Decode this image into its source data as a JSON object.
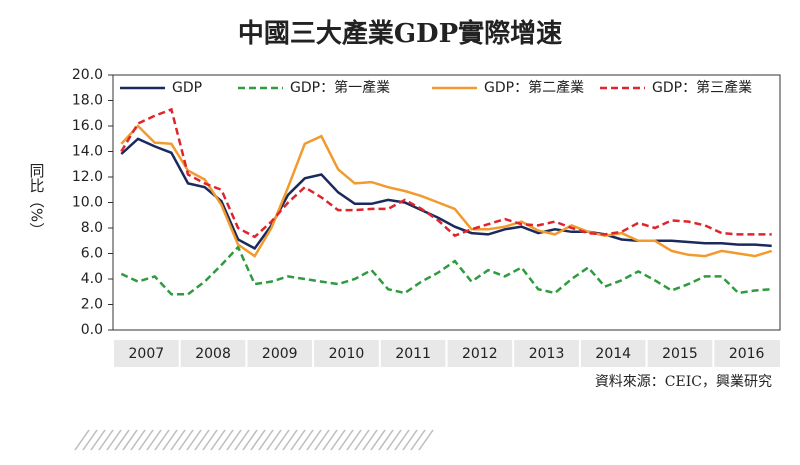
{
  "chart_data": {
    "type": "line",
    "title": "中國三大產業GDP實際增速",
    "y_label": "同比（%）",
    "source": "資料來源：CEIC，興業研究",
    "quarter_groups": [
      "2007",
      "2008",
      "2009",
      "2010",
      "2011",
      "2012",
      "2013",
      "2014",
      "2015",
      "2016"
    ],
    "ylim": [
      0,
      20
    ],
    "yticks": [
      {
        "value": 0,
        "label": "0.0"
      },
      {
        "value": 2,
        "label": "2.0"
      },
      {
        "value": 4,
        "label": "4.0"
      },
      {
        "value": 6,
        "label": "6.0"
      },
      {
        "value": 8,
        "label": "8.0"
      },
      {
        "value": 10,
        "label": "10.0"
      },
      {
        "value": 12,
        "label": "12.0"
      },
      {
        "value": 14,
        "label": "14.0"
      },
      {
        "value": 16,
        "label": "16.0"
      },
      {
        "value": 18,
        "label": "18.0"
      },
      {
        "value": 20,
        "label": "20.0"
      }
    ],
    "series": [
      {
        "name": "GDP",
        "color": "#1b2a5c",
        "dash": "solid",
        "values": [
          13.8,
          15.0,
          14.4,
          13.9,
          11.5,
          11.2,
          10.1,
          7.1,
          6.4,
          8.2,
          10.6,
          11.9,
          12.2,
          10.8,
          9.9,
          9.9,
          10.2,
          10.0,
          9.4,
          8.8,
          8.1,
          7.6,
          7.5,
          7.9,
          8.1,
          7.6,
          7.9,
          7.7,
          7.7,
          7.5,
          7.1,
          7.0,
          7.0,
          7.0,
          6.9,
          6.8,
          6.8,
          6.7,
          6.7,
          6.6
        ]
      },
      {
        "name": "GDP：第一產業",
        "color": "#2e9b3e",
        "dash": "dashed",
        "values": [
          4.4,
          3.8,
          4.2,
          2.8,
          2.8,
          3.8,
          5.1,
          6.5,
          3.6,
          3.8,
          4.2,
          4.0,
          3.8,
          3.6,
          4.0,
          4.7,
          3.2,
          2.9,
          3.8,
          4.5,
          5.4,
          3.8,
          4.7,
          4.2,
          4.9,
          3.2,
          2.9,
          4.0,
          4.9,
          3.4,
          3.9,
          4.6,
          3.9,
          3.1,
          3.6,
          4.2,
          4.2,
          2.9,
          3.1,
          3.2
        ]
      },
      {
        "name": "GDP：第二產業",
        "color": "#f29a2e",
        "dash": "solid",
        "values": [
          14.6,
          16.0,
          14.7,
          14.6,
          12.5,
          11.8,
          9.8,
          6.7,
          5.8,
          8.0,
          11.2,
          14.6,
          15.2,
          12.6,
          11.5,
          11.6,
          11.2,
          10.9,
          10.5,
          10.0,
          9.5,
          7.9,
          7.9,
          8.1,
          8.5,
          7.8,
          7.5,
          8.2,
          7.7,
          7.4,
          7.6,
          7.0,
          7.0,
          6.2,
          5.9,
          5.8,
          6.2,
          6.0,
          5.8,
          6.2
        ]
      },
      {
        "name": "GDP：第三產業",
        "color": "#e0242b",
        "dash": "dashed",
        "values": [
          14.0,
          16.2,
          16.8,
          17.3,
          12.2,
          11.5,
          11.0,
          8.0,
          7.3,
          8.5,
          10.0,
          11.2,
          10.4,
          9.4,
          9.4,
          9.5,
          9.5,
          10.2,
          9.5,
          8.6,
          7.4,
          7.9,
          8.3,
          8.7,
          8.3,
          8.2,
          8.5,
          8.0,
          7.6,
          7.5,
          7.7,
          8.4,
          8.0,
          8.6,
          8.5,
          8.2,
          7.6,
          7.5,
          7.5,
          7.5
        ]
      }
    ]
  }
}
